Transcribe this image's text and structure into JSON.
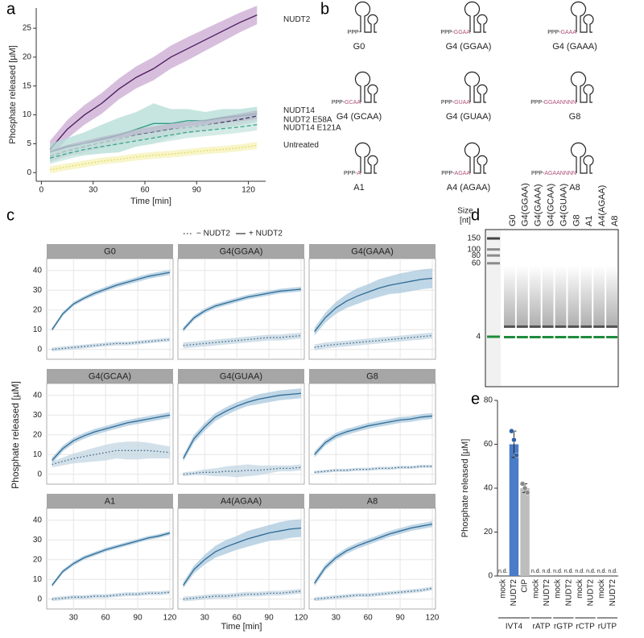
{
  "panel_labels": [
    "a",
    "b",
    "c",
    "d",
    "e"
  ],
  "chart_data": [
    {
      "type": "line",
      "x": [
        5,
        15,
        25,
        35,
        45,
        55,
        65,
        75,
        85,
        95,
        105,
        115,
        125
      ],
      "xlim": [
        -3,
        130
      ],
      "xticks": [
        0,
        30,
        60,
        90,
        120
      ],
      "ylim": [
        -1.5,
        28.5
      ],
      "yticks": [
        0,
        5,
        10,
        15,
        20,
        25
      ],
      "xlabel": "Time [min]",
      "ylabel": "Phosphate released [µM]",
      "series": [
        {
          "name": "NUDT2",
          "color": "#4b1d5c",
          "band_color": "#c9a8d2",
          "dash": "solid",
          "values": [
            4,
            7.5,
            10,
            12,
            14.5,
            16.5,
            18,
            20,
            21.5,
            23,
            24.5,
            26,
            27.3
          ],
          "errors": [
            1.5,
            1.6,
            1.7,
            1.8,
            1.8,
            1.9,
            2,
            2,
            2,
            1.9,
            1.8,
            1.7,
            1.6
          ]
        },
        {
          "name": "NUDT14",
          "color": "#2a9d84",
          "band_color": "#b3dcd6",
          "dash": "solid",
          "values": [
            3.5,
            4.5,
            5,
            5.8,
            6.5,
            7.5,
            8.5,
            8.5,
            9,
            9,
            9.5,
            9.8,
            10.2
          ],
          "errors": [
            1.5,
            1.5,
            2,
            2.5,
            3,
            3,
            3.5,
            2.5,
            2,
            1.5,
            1.5,
            1.2,
            1.2
          ]
        },
        {
          "name": "NUDT2 E58A",
          "color": "#3b3b5e",
          "band_color": "#b9b6cb",
          "dash": "dashed",
          "values": [
            2.8,
            3.8,
            4.5,
            5.2,
            5.8,
            6.5,
            7,
            7.5,
            7.8,
            8.2,
            8.7,
            9.2,
            9.8
          ],
          "errors": [
            1,
            1,
            1,
            1,
            1,
            1,
            1,
            1,
            1,
            1,
            1,
            1,
            1
          ]
        },
        {
          "name": "NUDT14 E121A",
          "color": "#3aa58b",
          "band_color": "#c5e4dd",
          "dash": "dashed",
          "values": [
            2.5,
            3.3,
            4,
            4.5,
            5,
            5.5,
            6,
            6.5,
            7,
            7.3,
            7.6,
            7.9,
            8.3
          ],
          "errors": [
            1,
            1,
            1,
            1,
            1,
            1,
            1,
            1,
            1,
            1,
            1,
            1,
            1
          ]
        },
        {
          "name": "Untreated",
          "color": "#e3d84a",
          "band_color": "#f6f1b8",
          "dash": "dotted",
          "values": [
            0.5,
            1,
            1.5,
            2,
            2.3,
            2.7,
            3,
            3.2,
            3.5,
            3.8,
            4,
            4.3,
            4.7
          ],
          "errors": [
            0.6,
            0.6,
            0.6,
            0.6,
            0.6,
            0.6,
            0.6,
            0.6,
            0.6,
            0.6,
            0.6,
            0.6,
            0.6
          ]
        }
      ]
    },
    {
      "type": "line-facets",
      "x": [
        10,
        20,
        30,
        40,
        50,
        60,
        70,
        80,
        90,
        100,
        110,
        120
      ],
      "xlim": [
        5,
        123
      ],
      "xticks": [
        30,
        60,
        90,
        120
      ],
      "ylim": [
        -5,
        46
      ],
      "yticks": [
        0,
        10,
        20,
        30,
        40
      ],
      "xlabel": "Time [min]",
      "ylabel": "Phosphate released [µM]",
      "grid": true,
      "series": [
        {
          "name": "− NUDT2",
          "color": "#3d6680",
          "band_color": "#c3d6e3",
          "dash": "dotted"
        },
        {
          "name": "+ NUDT2",
          "color": "#2f6b95",
          "band_color": "#a9c8dd",
          "dash": "solid"
        }
      ],
      "facets": [
        {
          "title": "G0",
          "series": [
            {
              "values": [
                0,
                0.5,
                1,
                1.5,
                2,
                2.5,
                3,
                3,
                3.5,
                4,
                4.5,
                5
              ],
              "errors": [
                1,
                1,
                1,
                1,
                1,
                1,
                1,
                1,
                1,
                1,
                1,
                1
              ]
            },
            {
              "values": [
                10,
                18,
                23,
                26,
                28.5,
                30.5,
                32.5,
                34,
                35.5,
                37,
                38,
                39
              ],
              "errors": [
                1,
                1,
                1,
                1,
                1.2,
                1.2,
                1.2,
                1.2,
                1.3,
                1.3,
                1.3,
                1.3
              ]
            }
          ]
        },
        {
          "title": "G4(GGAA)",
          "series": [
            {
              "values": [
                2,
                2.5,
                3,
                3.5,
                4,
                4.5,
                5,
                5.5,
                6,
                6,
                6.5,
                7
              ],
              "errors": [
                1.5,
                1.5,
                1.5,
                1.5,
                1.5,
                1.5,
                1.5,
                1.5,
                1.5,
                1.5,
                1.5,
                1.5
              ]
            },
            {
              "values": [
                10,
                16,
                19.5,
                22,
                23.5,
                25,
                26.5,
                27.5,
                28.5,
                29.5,
                30,
                30.5
              ],
              "errors": [
                1.2,
                1.2,
                1.2,
                1.2,
                1.2,
                1.2,
                1.2,
                1.2,
                1.2,
                1.2,
                1.2,
                1.2
              ]
            }
          ]
        },
        {
          "title": "G4(GAAA)",
          "series": [
            {
              "values": [
                1,
                2,
                2.5,
                3,
                3.5,
                4,
                4.5,
                5,
                5.5,
                6,
                6.5,
                7
              ],
              "errors": [
                1.5,
                1.5,
                1.5,
                1.5,
                1.5,
                1.5,
                1.5,
                1.5,
                1.5,
                1.5,
                1.5,
                1.5
              ]
            },
            {
              "values": [
                9,
                16,
                21,
                24.5,
                27,
                29,
                31,
                32.5,
                33.5,
                34.5,
                35.5,
                36
              ],
              "errors": [
                2,
                2.5,
                3,
                3.5,
                4,
                4,
                4.5,
                4.5,
                5,
                5,
                5,
                5
              ]
            }
          ]
        },
        {
          "title": "G4(GCAA)",
          "series": [
            {
              "values": [
                5,
                6.5,
                8,
                9,
                10,
                11,
                12,
                12,
                12,
                12,
                11.5,
                11
              ],
              "errors": [
                1.5,
                2,
                2.5,
                3,
                3.5,
                4,
                4,
                4.5,
                4.5,
                4,
                3.5,
                3
              ]
            },
            {
              "values": [
                7,
                13,
                17,
                19.5,
                21.5,
                23,
                24.5,
                26,
                27,
                28,
                29,
                30
              ],
              "errors": [
                1.5,
                1.5,
                1.5,
                1.5,
                1.5,
                1.5,
                1.5,
                1.5,
                1.5,
                1.5,
                1.5,
                1.5
              ]
            }
          ]
        },
        {
          "title": "G4(GUAA)",
          "series": [
            {
              "values": [
                0,
                0.5,
                1,
                1,
                1.5,
                1.5,
                2,
                2,
                2.5,
                3,
                3,
                3.5
              ],
              "errors": [
                1,
                1,
                1.5,
                2,
                2.5,
                3,
                3,
                2.5,
                2,
                1.5,
                1.5,
                1.5
              ]
            },
            {
              "values": [
                8,
                18,
                24,
                29,
                32,
                34.5,
                36.5,
                38,
                39,
                40,
                40.5,
                41
              ],
              "errors": [
                1.5,
                2,
                2,
                2,
                2,
                2,
                2,
                2.5,
                2.5,
                2.5,
                2.5,
                2.5
              ]
            }
          ]
        },
        {
          "title": "G8",
          "series": [
            {
              "values": [
                1,
                1.5,
                2,
                2,
                2.5,
                2.5,
                3,
                3,
                3.5,
                3.5,
                4,
                4
              ],
              "errors": [
                0.8,
                0.8,
                0.8,
                0.8,
                0.8,
                0.8,
                0.8,
                0.8,
                0.8,
                0.8,
                0.8,
                0.8
              ]
            },
            {
              "values": [
                10,
                16,
                19.5,
                21.5,
                23,
                24.5,
                25.5,
                26.5,
                27.5,
                28,
                29,
                29.5
              ],
              "errors": [
                1.5,
                1.5,
                1.5,
                1.5,
                1.5,
                1.5,
                1.5,
                1.5,
                1.5,
                1.5,
                1.5,
                1.5
              ]
            }
          ]
        },
        {
          "title": "A1",
          "series": [
            {
              "values": [
                0,
                0.5,
                1,
                1,
                1.5,
                1.5,
                2,
                2.5,
                2.5,
                3,
                3,
                3.5
              ],
              "errors": [
                1,
                1,
                1,
                1,
                1,
                1,
                1,
                1,
                1,
                1,
                1,
                1
              ]
            },
            {
              "values": [
                7,
                14,
                18,
                21,
                23,
                25,
                26.5,
                28,
                29.5,
                31,
                32,
                33.5
              ],
              "errors": [
                1,
                1,
                1,
                1,
                1,
                1,
                1,
                1,
                1,
                1,
                1,
                1
              ]
            }
          ]
        },
        {
          "title": "A4(AGAA)",
          "series": [
            {
              "values": [
                0,
                0.5,
                1,
                1.5,
                1.5,
                2,
                2.5,
                2.5,
                3,
                3,
                3.5,
                4
              ],
              "errors": [
                1.2,
                1.2,
                1.2,
                1.2,
                1.2,
                1.2,
                1.2,
                1.2,
                1.2,
                1.2,
                1.2,
                1.2
              ]
            },
            {
              "values": [
                7,
                15,
                20,
                24,
                26.5,
                28.5,
                30.5,
                32,
                33.5,
                34.5,
                35.5,
                36
              ],
              "errors": [
                1.5,
                2,
                2.5,
                3,
                3.5,
                3.5,
                4,
                4,
                4,
                4.5,
                4.5,
                4.5
              ]
            }
          ]
        },
        {
          "title": "A8",
          "series": [
            {
              "values": [
                0,
                0.5,
                1,
                1.5,
                2,
                2,
                2.5,
                3,
                3.5,
                4,
                4.5,
                5.5
              ],
              "errors": [
                1,
                1,
                1,
                1,
                1,
                1,
                1,
                1,
                1,
                1,
                1,
                1
              ]
            },
            {
              "values": [
                8,
                16,
                21,
                24.5,
                27,
                29,
                31,
                33,
                34.5,
                36,
                37,
                38
              ],
              "errors": [
                1.5,
                1.5,
                1.5,
                1.5,
                1.5,
                1.5,
                1.5,
                1.5,
                1.5,
                1.5,
                1.5,
                1.5
              ]
            }
          ]
        }
      ]
    },
    {
      "type": "bar",
      "categories": [
        "mock",
        "NUDT2",
        "CIP",
        "mock",
        "NUDT2",
        "mock",
        "NUDT2",
        "mock",
        "NUDT2",
        "mock",
        "NUDT2"
      ],
      "groups": [
        "IVT4",
        "IVT4",
        "IVT4",
        "rATP",
        "rATP",
        "rGTP",
        "rGTP",
        "rCTP",
        "rCTP",
        "rUTP",
        "rUTP"
      ],
      "values": [
        null,
        60,
        40,
        null,
        null,
        null,
        null,
        null,
        null,
        null,
        null
      ],
      "value_labels": [
        "n.d.",
        null,
        null,
        "n.d.",
        "n.d.",
        "n.d.",
        "n.d.",
        "n.d.",
        "n.d.",
        "n.d.",
        "n.d."
      ],
      "errors": [
        null,
        6,
        2,
        null,
        null,
        null,
        null,
        null,
        null,
        null,
        null
      ],
      "points": [
        [],
        [
          66,
          62,
          55
        ],
        [
          42,
          40,
          38
        ],
        [],
        [],
        [],
        [],
        [],
        [],
        [],
        []
      ],
      "colors": [
        "#4a7cc7",
        "#4a7cc7",
        "#bdbdbd",
        "#4a7cc7",
        "#4a7cc7",
        "#4a7cc7",
        "#4a7cc7",
        "#4a7cc7",
        "#4a7cc7",
        "#4a7cc7",
        "#4a7cc7"
      ],
      "ylim": [
        0,
        80
      ],
      "yticks": [
        0,
        20,
        40,
        60,
        80
      ],
      "ylabel": "Phosphate released [µM]"
    }
  ],
  "diagram_b": {
    "nodes": [
      {
        "name": "G0",
        "prefix": "PPP-"
      },
      {
        "name": "G4 (GGAA)",
        "prefix": "PPP-",
        "seq": "GGAA"
      },
      {
        "name": "G4 (GAAA)",
        "prefix": "PPP-",
        "seq": "GAAA"
      },
      {
        "name": "G4 (GCAA)",
        "prefix": "PPP-",
        "seq": "GCAA"
      },
      {
        "name": "G4 (GUAA)",
        "prefix": "PPP-",
        "seq": "GUAA"
      },
      {
        "name": "G8",
        "prefix": "PPP-",
        "seq": "GGAANNNN"
      },
      {
        "name": "A1",
        "prefix": "PPP-",
        "seq": "A"
      },
      {
        "name": "A4 (AGAA)",
        "prefix": "PPP-",
        "seq": "AGAA"
      },
      {
        "name": "A8",
        "prefix": "PPP-",
        "seq": "AGAANNNN"
      }
    ]
  },
  "gel_d": {
    "size_label": [
      "Size",
      "[nt]"
    ],
    "lanes": [
      "G0",
      "G4(GGAA)",
      "G4(GAAA)",
      "G4(GCAA)",
      "G4(GUAA)",
      "G8",
      "A1",
      "A4(AGAA)",
      "A8"
    ],
    "ladder": [
      150,
      100,
      80,
      60,
      4
    ]
  }
}
